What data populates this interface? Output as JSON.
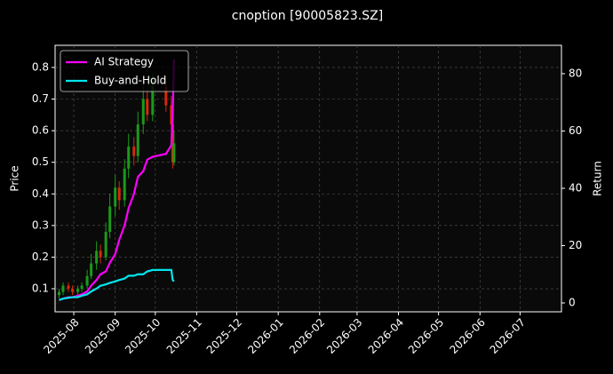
{
  "chart_data": {
    "type": "candlestick",
    "title": "cnoption [90005823.SZ]",
    "ylabel": "Price",
    "y2label": "Return",
    "x": [
      "2025-07-21",
      "2025-07-24",
      "2025-07-28",
      "2025-07-31",
      "2025-08-04",
      "2025-08-07",
      "2025-08-11",
      "2025-08-14",
      "2025-08-18",
      "2025-08-21",
      "2025-08-25",
      "2025-08-28",
      "2025-09-01",
      "2025-09-04",
      "2025-09-08",
      "2025-09-11",
      "2025-09-15",
      "2025-09-18",
      "2025-09-22",
      "2025-09-25",
      "2025-09-29",
      "2025-10-09",
      "2025-10-13",
      "2025-10-14",
      "2025-10-15"
    ],
    "open": [
      0.08,
      0.09,
      0.11,
      0.1,
      0.09,
      0.1,
      0.11,
      0.14,
      0.18,
      0.22,
      0.2,
      0.28,
      0.36,
      0.42,
      0.38,
      0.48,
      0.55,
      0.52,
      0.62,
      0.7,
      0.65,
      0.74,
      0.68,
      0.62,
      0.5
    ],
    "close": [
      0.09,
      0.11,
      0.1,
      0.09,
      0.1,
      0.11,
      0.14,
      0.18,
      0.22,
      0.2,
      0.28,
      0.36,
      0.42,
      0.38,
      0.48,
      0.55,
      0.52,
      0.62,
      0.7,
      0.65,
      0.74,
      0.68,
      0.62,
      0.5,
      0.56
    ],
    "high": [
      0.1,
      0.12,
      0.12,
      0.11,
      0.11,
      0.12,
      0.16,
      0.21,
      0.25,
      0.24,
      0.31,
      0.4,
      0.46,
      0.44,
      0.51,
      0.59,
      0.58,
      0.66,
      0.74,
      0.73,
      0.78,
      0.77,
      0.71,
      0.64,
      0.6
    ],
    "low": [
      0.07,
      0.08,
      0.09,
      0.08,
      0.08,
      0.09,
      0.1,
      0.13,
      0.16,
      0.18,
      0.19,
      0.26,
      0.33,
      0.35,
      0.36,
      0.45,
      0.49,
      0.5,
      0.59,
      0.63,
      0.63,
      0.66,
      0.59,
      0.48,
      0.49
    ],
    "up_color": "#1a9a1a",
    "down_color": "#d42a0a",
    "series": [
      {
        "name": "AI Strategy",
        "color": "#ff00ff",
        "axis": "y2",
        "values": [
          1,
          1.5,
          2,
          2,
          2.5,
          3,
          4,
          6,
          8,
          10,
          11,
          14,
          17,
          22,
          27,
          33,
          38,
          44,
          46,
          50,
          51,
          52,
          55,
          65,
          85
        ]
      },
      {
        "name": "Buy-and-Hold",
        "color": "#00e5ee",
        "axis": "y2",
        "values": [
          1,
          1.5,
          1.8,
          2,
          2,
          2.5,
          3,
          4,
          5,
          6,
          6.5,
          7,
          7.5,
          8,
          8.5,
          9.5,
          9.5,
          10,
          10,
          11,
          11.5,
          11.5,
          11.5,
          8,
          7.5
        ]
      }
    ],
    "xlim": [
      "2025-07-18",
      "2026-08-01"
    ],
    "xticks": [
      {
        "value": "2025-08-01",
        "label": "2025-08"
      },
      {
        "value": "2025-09-01",
        "label": "2025-09"
      },
      {
        "value": "2025-10-01",
        "label": "2025-10"
      },
      {
        "value": "2025-11-01",
        "label": "2025-11"
      },
      {
        "value": "2025-12-01",
        "label": "2025-12"
      },
      {
        "value": "2026-01-01",
        "label": "2026-01"
      },
      {
        "value": "2026-02-01",
        "label": "2026-02"
      },
      {
        "value": "2026-03-01",
        "label": "2026-03"
      },
      {
        "value": "2026-04-01",
        "label": "2026-04"
      },
      {
        "value": "2026-05-01",
        "label": "2026-05"
      },
      {
        "value": "2026-06-01",
        "label": "2026-06"
      },
      {
        "value": "2026-07-01",
        "label": "2026-07"
      }
    ],
    "ylim": [
      0.027,
      0.87
    ],
    "yticks": [
      0.1,
      0.2,
      0.3,
      0.4,
      0.5,
      0.6,
      0.7,
      0.8
    ],
    "y2lim": [
      -3.1,
      89.9
    ],
    "y2ticks": [
      0,
      20,
      40,
      60,
      80
    ],
    "grid": true,
    "legend": "upper left"
  }
}
